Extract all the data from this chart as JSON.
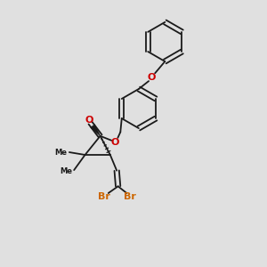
{
  "background_color": "#e0e0e0",
  "bond_color": "#1a1a1a",
  "oxygen_color": "#cc0000",
  "bromine_color": "#cc6600",
  "figsize": [
    3.0,
    3.0
  ],
  "dpi": 100,
  "xlim": [
    0,
    10
  ],
  "ylim": [
    0,
    10
  ]
}
